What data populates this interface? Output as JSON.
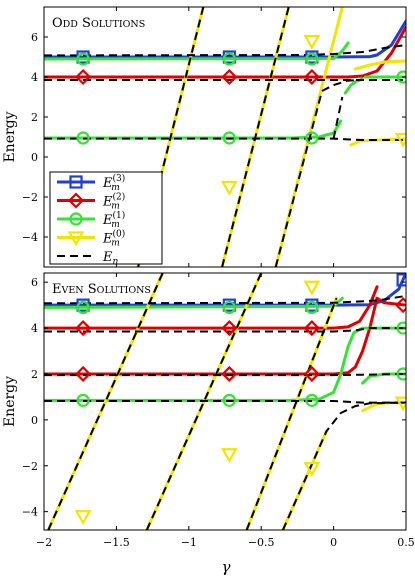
{
  "figure": {
    "xlabel": "γ",
    "xlim": [
      -2,
      0.5
    ],
    "xticks": [
      -2,
      -1.5,
      -1,
      -0.5,
      0,
      0.5
    ],
    "xtick_labels": [
      "−2",
      "−1.5",
      "−1",
      "−0.5",
      "0",
      "0.5"
    ],
    "colors": {
      "m3": "#1f3fd6",
      "m2": "#e00000",
      "m1": "#37e237",
      "m0": "#f0e600",
      "En": "#000000"
    },
    "legend": {
      "placement": "lower-left of top panel",
      "entries": [
        {
          "key": "m3",
          "text": "E_m^(3)",
          "base": "E",
          "sub": "m",
          "sup": "(3)",
          "marker": "square"
        },
        {
          "key": "m2",
          "text": "E_m^(2)",
          "base": "E",
          "sub": "m",
          "sup": "(2)",
          "marker": "diamond"
        },
        {
          "key": "m1",
          "text": "E_m^(1)",
          "base": "E",
          "sub": "m",
          "sup": "(1)",
          "marker": "circle"
        },
        {
          "key": "m0",
          "text": "E_m^(0)",
          "base": "E",
          "sub": "m",
          "sup": "(0)",
          "marker": "triangle-down"
        },
        {
          "key": "En",
          "text": "E_n",
          "base": "E",
          "sub": "n",
          "sup": "",
          "marker": "dashed"
        }
      ]
    }
  },
  "chart_data": [
    {
      "type": "line",
      "title": "Odd solutions",
      "ylabel": "Energy",
      "xlim": [
        -2,
        0.5
      ],
      "ylim": [
        -5.5,
        7.5
      ],
      "yticks": [
        -4,
        -2,
        0,
        2,
        4,
        6
      ],
      "ytick_labels": [
        "−4",
        "−2",
        "0",
        "2",
        "4",
        "6"
      ],
      "marker_x": [
        -1.73,
        -0.72,
        -0.15,
        0.48
      ],
      "series": [
        {
          "key": "m3",
          "style": "flat",
          "points": [
            [
              -2,
              5.0
            ],
            [
              0.0,
              5.0
            ],
            [
              0.25,
              5.02
            ],
            [
              0.3,
              5.1
            ],
            [
              0.4,
              5.6
            ],
            [
              0.5,
              6.8
            ]
          ]
        },
        {
          "key": "m2",
          "style": "flat",
          "points": [
            [
              -2,
              4.0
            ],
            [
              -0.3,
              4.0
            ],
            [
              0.0,
              4.0
            ],
            [
              0.1,
              4.0
            ],
            [
              0.2,
              4.05
            ],
            [
              0.3,
              4.3
            ],
            [
              0.4,
              5.2
            ],
            [
              0.5,
              6.5
            ]
          ]
        },
        {
          "key": "m1",
          "style": "flat",
          "points": [
            [
              -2,
              4.9
            ],
            [
              0.0,
              4.92
            ],
            [
              0.06,
              5.3
            ],
            [
              0.1,
              5.7
            ]
          ]
        },
        {
          "key": "m1",
          "style": "flat",
          "points": [
            [
              0.22,
              4.0
            ],
            [
              0.3,
              4.0
            ],
            [
              0.5,
              4.0
            ]
          ]
        },
        {
          "key": "m1",
          "style": "flat",
          "points": [
            [
              -2,
              0.95
            ],
            [
              -0.3,
              0.95
            ],
            [
              -0.1,
              1.0
            ],
            [
              0.0,
              1.2
            ],
            [
              0.05,
              1.8
            ]
          ]
        },
        {
          "key": "m1",
          "style": "flat",
          "points": [
            [
              0.08,
              3.2
            ],
            [
              0.12,
              3.6
            ],
            [
              0.16,
              3.8
            ],
            [
              0.2,
              3.9
            ]
          ]
        },
        {
          "key": "m0",
          "style": "flat",
          "points": [
            [
              0.12,
              0.6
            ],
            [
              0.18,
              0.8
            ],
            [
              0.3,
              0.85
            ],
            [
              0.5,
              0.9
            ]
          ]
        },
        {
          "key": "m0",
          "style": "flat",
          "points": [
            [
              0.15,
              4.4
            ],
            [
              0.25,
              4.6
            ],
            [
              0.35,
              4.75
            ],
            [
              0.5,
              4.8
            ]
          ]
        },
        {
          "key": "m0",
          "style": "diag",
          "points": [
            [
              -1.35,
              -5.5
            ],
            [
              -0.9,
              7.5
            ]
          ]
        },
        {
          "key": "m0",
          "style": "diag",
          "points": [
            [
              -0.77,
              -5.5
            ],
            [
              -0.31,
              7.5
            ]
          ]
        },
        {
          "key": "m0",
          "style": "diag",
          "points": [
            [
              -0.4,
              -5.5
            ],
            [
              0.06,
              7.5
            ]
          ]
        }
      ],
      "dashed_En": [
        [
          [
            -2,
            5.08
          ],
          [
            -0.2,
            5.1
          ],
          [
            0.0,
            5.15
          ],
          [
            0.2,
            5.25
          ],
          [
            0.35,
            5.45
          ],
          [
            0.5,
            5.6
          ]
        ],
        [
          [
            -2,
            3.85
          ],
          [
            0.1,
            3.85
          ],
          [
            0.2,
            3.85
          ],
          [
            0.5,
            3.85
          ]
        ],
        [
          [
            -2,
            0.92
          ],
          [
            -0.2,
            0.92
          ],
          [
            0.0,
            0.92
          ],
          [
            0.1,
            0.88
          ],
          [
            0.2,
            0.85
          ],
          [
            0.5,
            0.85
          ]
        ],
        [
          [
            -1.35,
            -5.5
          ],
          [
            -0.9,
            7.5
          ]
        ],
        [
          [
            -0.77,
            -5.5
          ],
          [
            -0.31,
            7.5
          ]
        ],
        [
          [
            -0.4,
            -5.5
          ],
          [
            -0.08,
            3.3
          ],
          [
            0.0,
            3.6
          ],
          [
            0.1,
            3.82
          ],
          [
            0.2,
            3.85
          ]
        ],
        [
          [
            0.0,
            0.92
          ],
          [
            0.06,
            3.0
          ]
        ]
      ],
      "markers": [
        {
          "key": "m3",
          "points": [
            [
              -1.73,
              5.0
            ],
            [
              -0.72,
              5.0
            ],
            [
              -0.15,
              5.0
            ]
          ]
        },
        {
          "key": "m2",
          "points": [
            [
              -1.73,
              4.0
            ],
            [
              -0.72,
              4.0
            ],
            [
              -0.15,
              4.0
            ]
          ]
        },
        {
          "key": "m1",
          "points": [
            [
              -1.73,
              4.9
            ],
            [
              -0.72,
              4.9
            ],
            [
              -0.15,
              4.9
            ],
            [
              0.48,
              4.0
            ],
            [
              -1.73,
              0.95
            ],
            [
              -0.72,
              0.95
            ],
            [
              -0.15,
              0.95
            ]
          ]
        },
        {
          "key": "m0",
          "points": [
            [
              -0.72,
              -1.5
            ],
            [
              -0.15,
              5.8
            ],
            [
              0.48,
              0.9
            ]
          ]
        }
      ]
    },
    {
      "type": "line",
      "title": "Even solutions",
      "ylabel": "Energy",
      "xlim": [
        -2,
        0.5
      ],
      "ylim": [
        -4.8,
        6.4
      ],
      "yticks": [
        -4,
        -2,
        0,
        2,
        4,
        6
      ],
      "ytick_labels": [
        "−4",
        "−2",
        "0",
        "2",
        "4",
        "6"
      ],
      "marker_x": [
        -1.73,
        -0.72,
        -0.15,
        0.48
      ],
      "series": [
        {
          "key": "m3",
          "style": "flat",
          "points": [
            [
              -2,
              5.0
            ],
            [
              0.0,
              5.0
            ],
            [
              0.25,
              5.02
            ],
            [
              0.35,
              5.2
            ],
            [
              0.45,
              5.7
            ],
            [
              0.5,
              6.4
            ]
          ]
        },
        {
          "key": "m2",
          "style": "flat",
          "points": [
            [
              -2,
              4.0
            ],
            [
              0.0,
              4.0
            ],
            [
              0.1,
              4.05
            ],
            [
              0.18,
              4.3
            ],
            [
              0.25,
              5.0
            ],
            [
              0.3,
              5.8
            ]
          ]
        },
        {
          "key": "m2",
          "style": "flat",
          "points": [
            [
              -2,
              2.0
            ],
            [
              0.0,
              2.0
            ],
            [
              0.1,
              2.05
            ],
            [
              0.15,
              2.3
            ],
            [
              0.2,
              3.0
            ],
            [
              0.25,
              4.0
            ],
            [
              0.3,
              5.3
            ],
            [
              0.35,
              5.1
            ],
            [
              0.5,
              5.0
            ]
          ]
        },
        {
          "key": "m1",
          "style": "flat",
          "points": [
            [
              -2,
              4.9
            ],
            [
              0.0,
              4.95
            ],
            [
              0.06,
              5.3
            ]
          ]
        },
        {
          "key": "m1",
          "style": "flat",
          "points": [
            [
              -2,
              0.85
            ],
            [
              -0.3,
              0.85
            ],
            [
              -0.1,
              0.9
            ],
            [
              0.0,
              1.2
            ],
            [
              0.05,
              2.0
            ],
            [
              0.1,
              3.2
            ],
            [
              0.14,
              3.8
            ],
            [
              0.2,
              4.0
            ],
            [
              0.5,
              4.0
            ]
          ]
        },
        {
          "key": "m1",
          "style": "flat",
          "points": [
            [
              0.2,
              1.6
            ],
            [
              0.25,
              1.9
            ],
            [
              0.35,
              2.0
            ],
            [
              0.5,
              2.0
            ]
          ]
        },
        {
          "key": "m0",
          "style": "flat",
          "points": [
            [
              0.2,
              0.4
            ],
            [
              0.3,
              0.7
            ],
            [
              0.4,
              0.75
            ],
            [
              0.5,
              0.75
            ]
          ]
        },
        {
          "key": "m0",
          "style": "diag",
          "points": [
            [
              -1.97,
              -4.8
            ],
            [
              -1.18,
              6.4
            ]
          ]
        },
        {
          "key": "m0",
          "style": "diag",
          "points": [
            [
              -1.29,
              -4.8
            ],
            [
              -0.5,
              6.4
            ]
          ]
        },
        {
          "key": "m0",
          "style": "diag",
          "points": [
            [
              -0.6,
              -4.8
            ],
            [
              0.02,
              5.3
            ]
          ]
        },
        {
          "key": "m0",
          "style": "diag",
          "points": [
            [
              -0.35,
              -4.8
            ],
            [
              -0.05,
              -0.5
            ]
          ]
        }
      ],
      "dashed_En": [
        [
          [
            -2,
            5.08
          ],
          [
            0.0,
            5.1
          ],
          [
            0.3,
            5.2
          ],
          [
            0.5,
            5.4
          ]
        ],
        [
          [
            -2,
            3.85
          ],
          [
            0.0,
            3.85
          ],
          [
            0.15,
            3.9
          ],
          [
            0.25,
            4.0
          ],
          [
            0.5,
            4.0
          ]
        ],
        [
          [
            -2,
            1.95
          ],
          [
            0.0,
            1.95
          ],
          [
            0.2,
            1.97
          ],
          [
            0.5,
            2.0
          ]
        ],
        [
          [
            -2,
            0.82
          ],
          [
            -0.3,
            0.82
          ],
          [
            0.0,
            0.82
          ],
          [
            0.2,
            0.75
          ],
          [
            0.5,
            0.75
          ]
        ],
        [
          [
            -1.97,
            -4.8
          ],
          [
            -1.18,
            6.4
          ]
        ],
        [
          [
            -1.29,
            -4.8
          ],
          [
            -0.5,
            6.4
          ]
        ],
        [
          [
            -0.6,
            -4.8
          ],
          [
            0.02,
            5.3
          ]
        ],
        [
          [
            -0.35,
            -4.8
          ],
          [
            -0.05,
            -0.5
          ],
          [
            0.05,
            0.3
          ],
          [
            0.15,
            0.6
          ],
          [
            0.25,
            0.72
          ],
          [
            0.5,
            0.75
          ]
        ]
      ],
      "markers": [
        {
          "key": "m3",
          "points": [
            [
              -1.73,
              5.0
            ],
            [
              -0.72,
              5.0
            ],
            [
              -0.15,
              5.0
            ],
            [
              0.48,
              6.1
            ]
          ]
        },
        {
          "key": "m2",
          "points": [
            [
              -1.73,
              4.0
            ],
            [
              -0.72,
              4.0
            ],
            [
              -0.15,
              4.0
            ],
            [
              0.48,
              5.0
            ],
            [
              -1.73,
              2.0
            ],
            [
              -0.72,
              2.0
            ],
            [
              -0.15,
              2.0
            ]
          ]
        },
        {
          "key": "m1",
          "points": [
            [
              -1.73,
              4.9
            ],
            [
              -0.72,
              4.9
            ],
            [
              -0.15,
              4.9
            ],
            [
              0.48,
              4.0
            ],
            [
              0.48,
              2.0
            ],
            [
              -1.73,
              0.85
            ],
            [
              -0.72,
              0.85
            ],
            [
              -0.15,
              0.85
            ]
          ]
        },
        {
          "key": "m0",
          "points": [
            [
              -1.73,
              -4.2
            ],
            [
              -0.72,
              -1.5
            ],
            [
              -0.15,
              5.8
            ],
            [
              -0.15,
              -2.1
            ],
            [
              0.48,
              0.75
            ]
          ]
        }
      ]
    }
  ]
}
